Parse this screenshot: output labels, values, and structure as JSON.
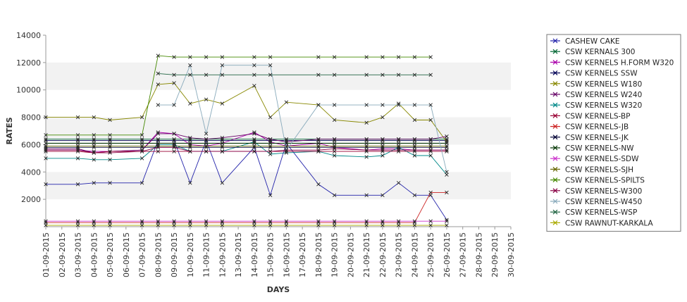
{
  "chart_data": {
    "type": "line",
    "title": "",
    "xlabel": "DAYS",
    "ylabel": "RATES",
    "ylim": [
      0,
      14000
    ],
    "yticks": [
      2000,
      4000,
      6000,
      8000,
      10000,
      12000,
      14000
    ],
    "grid": "alternating horizontal bands",
    "legend_position": "right",
    "categories": [
      "01-09-2015",
      "02-09-2015",
      "03-09-2015",
      "04-09-2015",
      "05-09-2015",
      "06-09-2015",
      "07-09-2015",
      "08-09-2015",
      "09-09-2015",
      "10-09-2015",
      "11-09-2015",
      "12-09-2015",
      "13-09-2015",
      "14-09-2015",
      "15-09-2015",
      "16-09-2015",
      "17-09-2015",
      "18-09-2015",
      "19-09-2015",
      "20-09-2015",
      "21-09-2015",
      "22-09-2015",
      "23-09-2015",
      "24-09-2015",
      "25-09-2015",
      "26-09-2015",
      "27-09-2015",
      "28-09-2015",
      "29-09-2015",
      "30-09-2015"
    ],
    "series": [
      {
        "name": "CASHEW CAKE",
        "color": "#2222aa",
        "values": [
          3100,
          null,
          3100,
          3200,
          3200,
          null,
          3200,
          6300,
          6300,
          3200,
          6300,
          3200,
          null,
          5800,
          2300,
          6100,
          null,
          3100,
          2300,
          null,
          2300,
          2300,
          3200,
          2300,
          2300,
          500,
          null,
          null,
          null,
          null
        ]
      },
      {
        "name": "CSW KERNALS 300",
        "color": "#006633",
        "values": [
          6400,
          null,
          6400,
          6400,
          6400,
          null,
          6400,
          6400,
          6400,
          6400,
          6400,
          6400,
          null,
          6400,
          6400,
          6400,
          null,
          6400,
          6400,
          null,
          6400,
          6400,
          6400,
          6400,
          6400,
          6400,
          null,
          null,
          null,
          null
        ]
      },
      {
        "name": "CSW KERNELS H.FORM W320",
        "color": "#aa00aa",
        "values": [
          5600,
          null,
          5600,
          5500,
          5500,
          null,
          5600,
          6900,
          6800,
          6000,
          5900,
          6100,
          null,
          6900,
          6200,
          5900,
          null,
          6100,
          5800,
          null,
          5600,
          5700,
          5700,
          5600,
          5600,
          5600,
          null,
          null,
          null,
          null
        ]
      },
      {
        "name": "CSW KERNELS SSW",
        "color": "#000055",
        "values": [
          6300,
          null,
          6300,
          6300,
          6300,
          null,
          6300,
          6300,
          6300,
          6300,
          6300,
          6300,
          null,
          6300,
          6300,
          6300,
          null,
          6300,
          6300,
          null,
          6300,
          6300,
          6300,
          6300,
          6300,
          6300,
          null,
          null,
          null,
          null
        ]
      },
      {
        "name": "CSW KERNELS W180",
        "color": "#888800",
        "values": [
          8000,
          null,
          8000,
          8000,
          7800,
          null,
          8000,
          10400,
          10500,
          9000,
          9300,
          9000,
          null,
          10300,
          8000,
          9100,
          null,
          8900,
          7800,
          null,
          7600,
          8000,
          9000,
          7800,
          7800,
          6200,
          null,
          null,
          null,
          null
        ]
      },
      {
        "name": "CSW KERNELS W240",
        "color": "#660066",
        "values": [
          5700,
          null,
          5700,
          5400,
          5500,
          null,
          5600,
          6800,
          6800,
          6500,
          6400,
          6500,
          null,
          6800,
          6400,
          6200,
          null,
          6400,
          6400,
          null,
          6400,
          6400,
          6400,
          6400,
          6400,
          6600,
          null,
          null,
          null,
          null
        ]
      },
      {
        "name": "CSW KERNELS W320",
        "color": "#008888",
        "values": [
          5000,
          null,
          5000,
          4900,
          4900,
          null,
          5000,
          6000,
          6000,
          5500,
          5500,
          5500,
          null,
          6200,
          5300,
          5400,
          null,
          5500,
          5200,
          null,
          5100,
          5200,
          5800,
          5200,
          5200,
          3800,
          null,
          null,
          null,
          null
        ]
      },
      {
        "name": "CSW KERNELS-BP",
        "color": "#990033",
        "values": [
          5500,
          null,
          5500,
          5400,
          5500,
          null,
          5500,
          5500,
          5500,
          5500,
          5500,
          5500,
          null,
          5500,
          5500,
          5500,
          null,
          5500,
          5500,
          null,
          5500,
          5500,
          5500,
          5500,
          5500,
          5500,
          null,
          null,
          null,
          null
        ]
      },
      {
        "name": "CSW KERNELS-JB",
        "color": "#cc2222",
        "values": [
          300,
          null,
          300,
          300,
          300,
          null,
          300,
          300,
          300,
          300,
          300,
          300,
          null,
          300,
          300,
          300,
          null,
          300,
          300,
          null,
          300,
          300,
          300,
          300,
          2500,
          2500,
          null,
          null,
          null,
          null
        ]
      },
      {
        "name": "CSW KERNELS-JK",
        "color": "#000033",
        "values": [
          5800,
          null,
          5800,
          5800,
          5800,
          null,
          5800,
          5800,
          5800,
          5800,
          5800,
          5800,
          null,
          5800,
          5800,
          5800,
          null,
          5800,
          5800,
          null,
          5800,
          5800,
          5800,
          5800,
          5800,
          5800,
          null,
          null,
          null,
          null
        ]
      },
      {
        "name": "CSW KERNELS-NW",
        "color": "#003300",
        "values": [
          6100,
          null,
          6100,
          6100,
          6100,
          null,
          6100,
          6100,
          6100,
          6100,
          6100,
          6100,
          null,
          6100,
          6100,
          6100,
          null,
          6100,
          6100,
          null,
          6100,
          6100,
          6100,
          6100,
          6100,
          6100,
          null,
          null,
          null,
          null
        ]
      },
      {
        "name": "CSW KERNELS-SDW",
        "color": "#cc33cc",
        "values": [
          400,
          null,
          400,
          400,
          400,
          null,
          400,
          400,
          400,
          400,
          400,
          400,
          null,
          400,
          400,
          400,
          null,
          400,
          400,
          null,
          400,
          400,
          400,
          400,
          400,
          400,
          null,
          null,
          null,
          null
        ]
      },
      {
        "name": "CSW KERNELS-SJH",
        "color": "#666600",
        "values": [
          5900,
          null,
          5900,
          5900,
          5900,
          null,
          5900,
          5900,
          5900,
          5900,
          5900,
          5900,
          null,
          5900,
          5900,
          5900,
          null,
          5900,
          5900,
          null,
          5900,
          5900,
          5900,
          5900,
          5900,
          5900,
          null,
          null,
          null,
          null
        ]
      },
      {
        "name": "CSW KERNELS-SPILTS",
        "color": "#448800",
        "values": [
          6700,
          null,
          6700,
          6700,
          6700,
          null,
          6700,
          12500,
          12400,
          12400,
          12400,
          12400,
          null,
          12400,
          12400,
          null,
          null,
          12400,
          12400,
          null,
          12400,
          12400,
          12400,
          12400,
          12400,
          null,
          null,
          null,
          null,
          null
        ]
      },
      {
        "name": "CSW KERNELS-W300",
        "color": "#880044",
        "values": [
          5600,
          null,
          5600,
          5400,
          5400,
          null,
          5500,
          5800,
          5800,
          5500,
          5500,
          5500,
          null,
          5500,
          5500,
          5600,
          null,
          5600,
          5700,
          null,
          5600,
          5600,
          5600,
          5600,
          5600,
          5600,
          null,
          null,
          null,
          null
        ]
      },
      {
        "name": "CSW KERNELS-W450",
        "color": "#88aabb",
        "values": [
          null,
          null,
          null,
          null,
          null,
          null,
          null,
          8900,
          8900,
          11800,
          6800,
          11800,
          null,
          11800,
          11800,
          5600,
          null,
          8900,
          8900,
          null,
          8900,
          8900,
          8900,
          8900,
          8900,
          4000,
          null,
          null,
          null,
          null
        ]
      },
      {
        "name": "CSW KERNELS-WSP",
        "color": "#226644",
        "values": [
          null,
          null,
          null,
          null,
          null,
          null,
          null,
          11200,
          11100,
          11100,
          11100,
          11100,
          null,
          11100,
          11100,
          null,
          null,
          11100,
          11100,
          null,
          11100,
          11100,
          11100,
          11100,
          11100,
          null,
          null,
          null,
          null,
          null
        ]
      },
      {
        "name": "CSW RAWNUT-KARKALA",
        "color": "#aaaa00",
        "values": [
          100,
          null,
          100,
          100,
          100,
          null,
          100,
          100,
          100,
          100,
          100,
          100,
          null,
          100,
          100,
          100,
          null,
          100,
          100,
          null,
          100,
          100,
          100,
          100,
          100,
          100,
          null,
          null,
          null,
          null
        ]
      }
    ]
  }
}
